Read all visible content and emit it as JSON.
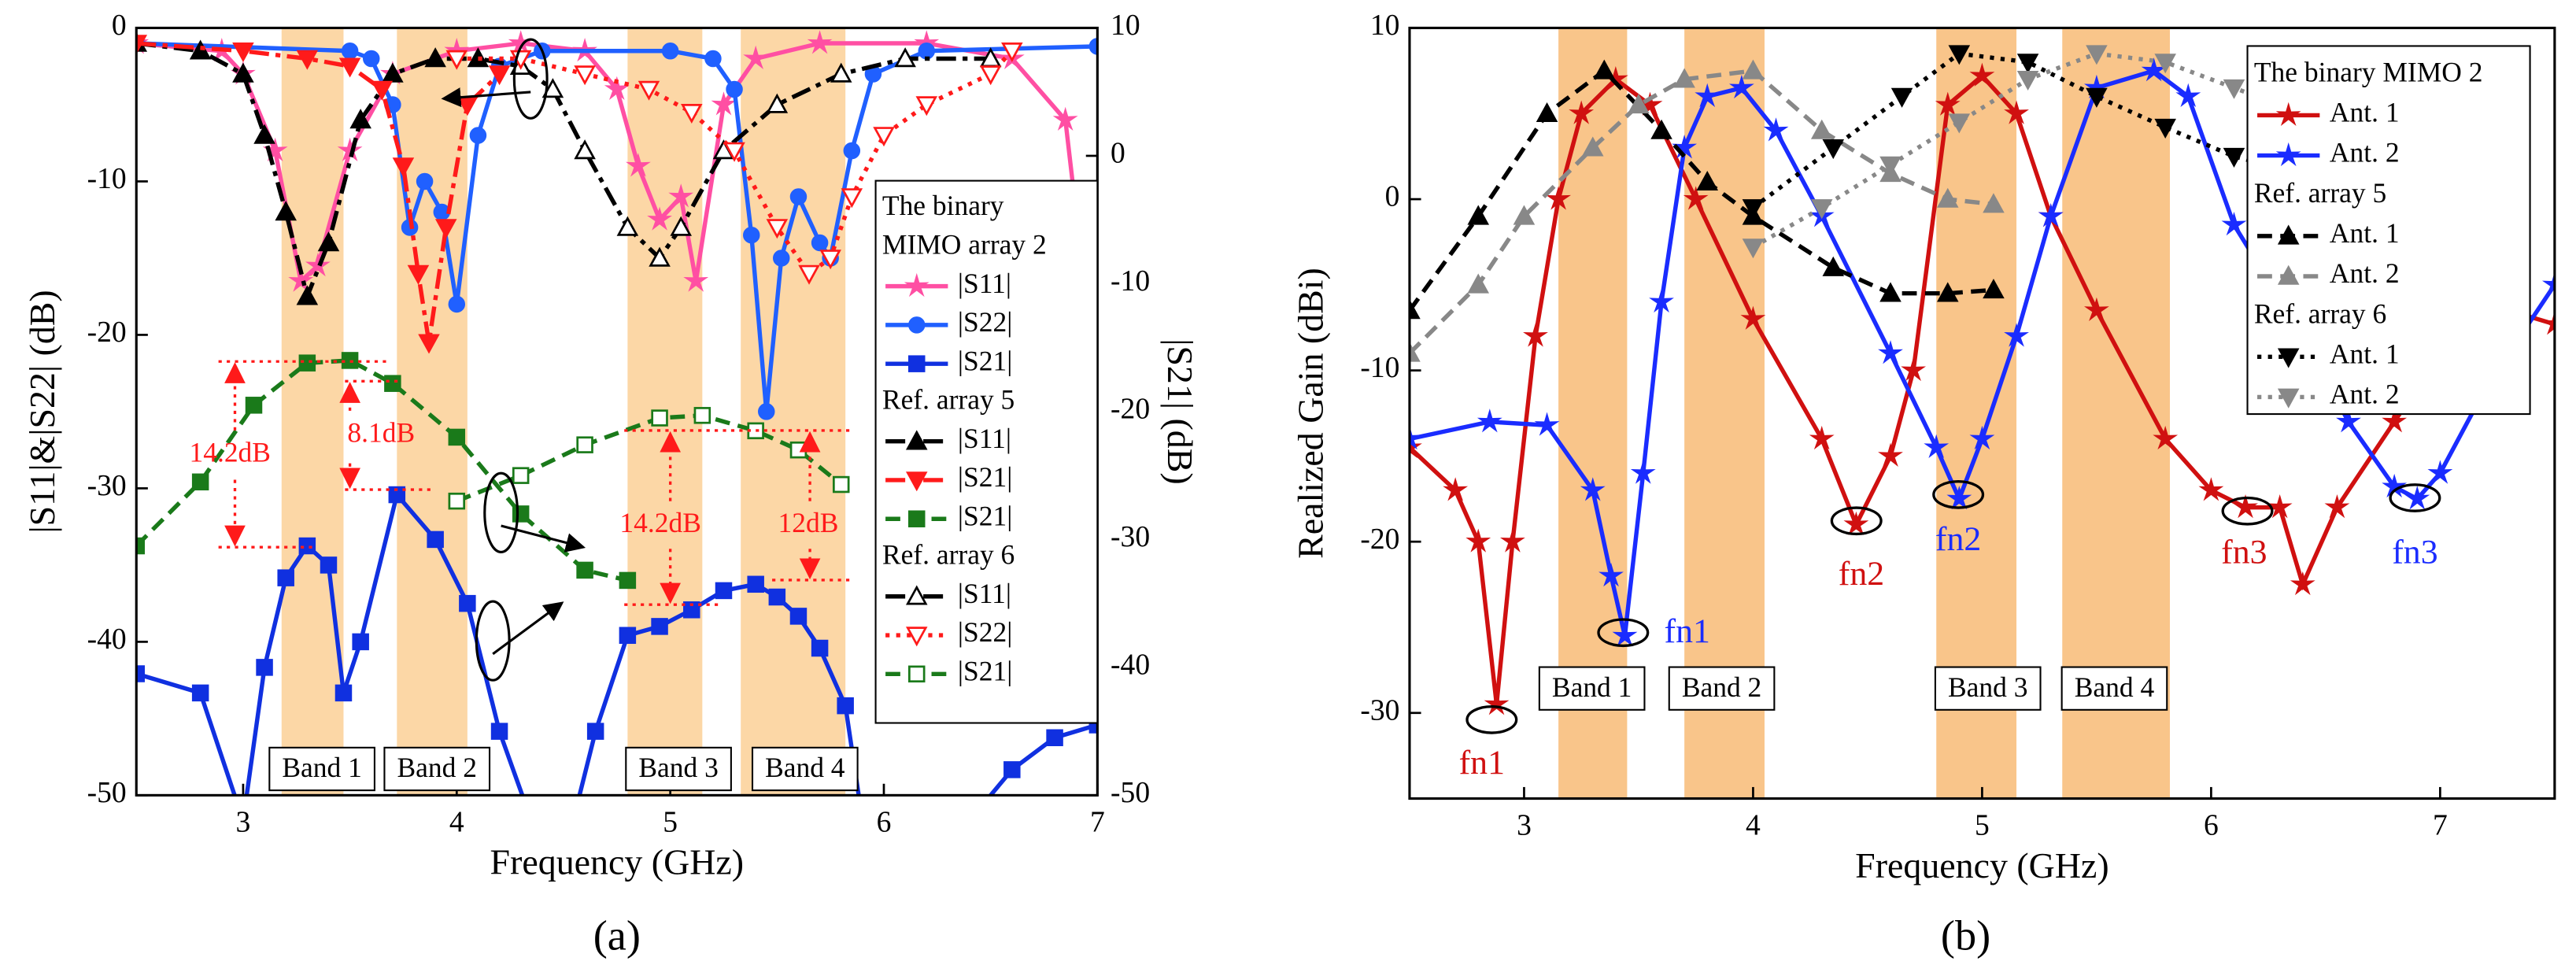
{
  "chart_data": [
    {
      "type": "line",
      "caption": "(a)",
      "x_label": "Frequency (GHz)",
      "y_label": "|S11|&|S22| (dB)",
      "y2_label": "|S21| (dB)",
      "xlim": [
        2.5,
        7
      ],
      "xticks": [
        3,
        4,
        5,
        6,
        7
      ],
      "ylim": [
        -50,
        0
      ],
      "yticks": [
        0,
        -10,
        -20,
        -30,
        -40,
        -50
      ],
      "y2lim": [
        -50,
        10
      ],
      "y2ticks": [
        10,
        0,
        -10,
        -20,
        -30,
        -40,
        -50
      ],
      "bands": [
        {
          "label": "Band 1",
          "range": [
            3.18,
            3.47
          ]
        },
        {
          "label": "Band 2",
          "range": [
            3.72,
            4.05
          ]
        },
        {
          "label": "Band 3",
          "range": [
            4.8,
            5.15
          ]
        },
        {
          "label": "Band 4",
          "range": [
            5.33,
            5.82
          ]
        }
      ],
      "annotations": [
        {
          "text": "14.2dB",
          "color": "#ff1a1a"
        },
        {
          "text": "8.1dB",
          "color": "#ff1a1a"
        },
        {
          "text": "14.2dB",
          "color": "#ff1a1a"
        },
        {
          "text": "12dB",
          "color": "#ff1a1a"
        }
      ],
      "groups": [
        {
          "name": [
            "The binary",
            "MIMO array 2"
          ],
          "series": [
            {
              "name": "|S11|",
              "color": "#ff4fa3",
              "marker": "star",
              "filled": true,
              "dash": "solid",
              "x": [
                2.5,
                2.9,
                3.0,
                3.15,
                3.27,
                3.35,
                3.5,
                3.7,
                4.0,
                4.3,
                4.6,
                4.75,
                4.85,
                4.95,
                5.05,
                5.12,
                5.25,
                5.4,
                5.7,
                6.2,
                6.6,
                6.85,
                7.0
              ],
              "values": [
                -1,
                -1.5,
                -3,
                -8,
                -16.5,
                -15.5,
                -8,
                -3,
                -1.5,
                -1,
                -1.5,
                -4,
                -9,
                -12.5,
                -11,
                -16.5,
                -5,
                -2,
                -1,
                -1,
                -2,
                -6,
                -24
              ]
            },
            {
              "name": "|S22|",
              "color": "#2060ff",
              "marker": "circle",
              "filled": true,
              "dash": "solid",
              "x": [
                2.5,
                3.5,
                3.6,
                3.7,
                3.78,
                3.85,
                3.93,
                4.0,
                4.1,
                4.2,
                4.4,
                5.0,
                5.2,
                5.3,
                5.38,
                5.45,
                5.52,
                5.6,
                5.7,
                5.75,
                5.85,
                5.95,
                6.2,
                7.0
              ],
              "values": [
                -1,
                -1.5,
                -2,
                -5,
                -13,
                -10,
                -12,
                -18,
                -7,
                -2.5,
                -1.5,
                -1.5,
                -2,
                -4,
                -13.5,
                -25,
                -15,
                -11,
                -14,
                -15,
                -8,
                -3,
                -1.5,
                -1.2
              ]
            },
            {
              "name": "|S21|",
              "color": "#1030e0",
              "marker": "square",
              "filled": true,
              "dash": "solid",
              "axis": "y2",
              "x": [
                2.5,
                2.8,
                3.0,
                3.1,
                3.2,
                3.3,
                3.4,
                3.47,
                3.55,
                3.72,
                3.9,
                4.05,
                4.2,
                4.35,
                4.5,
                4.65,
                4.8,
                4.95,
                5.1,
                5.25,
                5.4,
                5.5,
                5.6,
                5.7,
                5.82,
                5.9,
                6.0,
                6.2,
                6.4,
                6.6,
                6.8,
                7.0
              ],
              "values": [
                -40.5,
                -42,
                -52,
                -40,
                -33,
                -30.5,
                -32,
                -42,
                -38,
                -26.5,
                -30,
                -35,
                -45,
                -52,
                -55,
                -45,
                -37.5,
                -36.8,
                -35.5,
                -34,
                -33.5,
                -34.5,
                -36,
                -38.5,
                -43,
                -52,
                -58,
                -56,
                -52,
                -48,
                -45.5,
                -44.5
              ]
            }
          ]
        },
        {
          "name": "Ref. array 5",
          "series": [
            {
              "name": "|S11|",
              "color": "#000000",
              "marker": "triangle-up",
              "filled": true,
              "dash": "dashdot",
              "x": [
                2.5,
                2.8,
                3.0,
                3.1,
                3.2,
                3.3,
                3.4,
                3.55,
                3.7,
                3.9,
                4.1,
                4.3
              ],
              "values": [
                -1,
                -1.5,
                -3,
                -7,
                -12,
                -17.5,
                -14,
                -6,
                -3,
                -2,
                -2,
                -2.5
              ]
            },
            {
              "name": "|S21|",
              "color": "#ff1a1a",
              "marker": "triangle-down",
              "filled": true,
              "dash": "dashdot",
              "x": [
                2.5,
                3.0,
                3.3,
                3.5,
                3.65,
                3.75,
                3.82,
                3.87,
                3.95,
                4.05,
                4.2
              ],
              "values": [
                -1,
                -1.5,
                -2,
                -2.5,
                -4,
                -9,
                -16,
                -20.5,
                -13,
                -5,
                -3
              ]
            },
            {
              "name": "|S21|",
              "color": "#1a7a1a",
              "marker": "square",
              "filled": true,
              "dash": "dash",
              "axis": "y2",
              "x": [
                2.5,
                2.8,
                3.05,
                3.3,
                3.5,
                3.7,
                4.0,
                4.3,
                4.6,
                4.8
              ],
              "values": [
                -30.5,
                -25.5,
                -19.5,
                -16.2,
                -16,
                -17.8,
                -22,
                -28,
                -32.4,
                -33.2
              ]
            }
          ]
        },
        {
          "name": "Ref. array 6",
          "series": [
            {
              "name": "|S11|",
              "color": "#000000",
              "marker": "triangle-up",
              "filled": false,
              "dash": "dashdot",
              "x": [
                4.3,
                4.45,
                4.6,
                4.8,
                4.95,
                5.05,
                5.25,
                5.5,
                5.8,
                6.1,
                6.5
              ],
              "values": [
                -2.5,
                -4,
                -8,
                -13,
                -15,
                -13,
                -8,
                -5,
                -3,
                -2,
                -2
              ]
            },
            {
              "name": "|S22|",
              "color": "#ff1a1a",
              "marker": "triangle-down",
              "filled": false,
              "dash": "dot",
              "x": [
                4.0,
                4.3,
                4.6,
                4.9,
                5.1,
                5.3,
                5.5,
                5.65,
                5.75,
                5.85,
                6.0,
                6.2,
                6.5,
                6.6
              ],
              "values": [
                -2,
                -2,
                -3,
                -4,
                -5.5,
                -8,
                -13,
                -16,
                -15,
                -11,
                -7,
                -5,
                -3,
                -1.5
              ]
            },
            {
              "name": "|S21|",
              "color": "#1a7a1a",
              "marker": "square",
              "filled": false,
              "dash": "dash",
              "axis": "y2",
              "x": [
                4.0,
                4.3,
                4.6,
                4.95,
                5.15,
                5.4,
                5.6,
                5.8
              ],
              "values": [
                -27,
                -25,
                -22.6,
                -20.5,
                -20.3,
                -21.5,
                -23,
                -25.7
              ]
            }
          ]
        }
      ]
    },
    {
      "type": "line",
      "caption": "(b)",
      "x_label": "Frequency (GHz)",
      "y_label": "Realized Gain (dBi)",
      "xlim": [
        2.5,
        7.5
      ],
      "xticks": [
        3,
        4,
        5,
        6,
        7
      ],
      "ylim": [
        -35,
        10
      ],
      "yticks": [
        -30,
        -20,
        -10,
        0,
        10
      ],
      "bands": [
        {
          "label": "Band 1",
          "range": [
            3.15,
            3.45
          ]
        },
        {
          "label": "Band 2",
          "range": [
            3.7,
            4.05
          ]
        },
        {
          "label": "Band 3",
          "range": [
            4.8,
            5.15
          ]
        },
        {
          "label": "Band 4",
          "range": [
            5.35,
            5.82
          ]
        }
      ],
      "annotations": [
        {
          "text": "fn1",
          "color": "#d01010"
        },
        {
          "text": "fn1",
          "color": "#1a2cff"
        },
        {
          "text": "fn2",
          "color": "#d01010"
        },
        {
          "text": "fn2",
          "color": "#1a2cff"
        },
        {
          "text": "fn3",
          "color": "#d01010"
        },
        {
          "text": "fn3",
          "color": "#1a2cff"
        }
      ],
      "groups": [
        {
          "name": "The binary MIMO 2",
          "series": [
            {
              "name": "Ant. 1",
              "color": "#d01010",
              "marker": "star",
              "filled": true,
              "dash": "solid",
              "x": [
                2.5,
                2.7,
                2.8,
                2.88,
                2.95,
                3.05,
                3.15,
                3.25,
                3.4,
                3.55,
                3.75,
                4.0,
                4.3,
                4.45,
                4.6,
                4.7,
                4.85,
                5.0,
                5.15,
                5.3,
                5.5,
                5.8,
                6.0,
                6.15,
                6.3,
                6.4,
                6.55,
                6.8,
                7.0,
                7.3,
                7.5
              ],
              "values": [
                -14.5,
                -17,
                -20,
                -29.5,
                -20,
                -8,
                0,
                5,
                7,
                5.5,
                0,
                -7,
                -14,
                -19,
                -15,
                -10,
                5.5,
                7.2,
                5,
                -1,
                -6.5,
                -14,
                -17,
                -18,
                -18,
                -22.5,
                -18,
                -13,
                -9,
                -6.5,
                -7.3
              ]
            },
            {
              "name": "Ant. 2",
              "color": "#1a2cff",
              "marker": "star",
              "filled": true,
              "dash": "solid",
              "x": [
                2.5,
                2.85,
                3.1,
                3.3,
                3.38,
                3.44,
                3.52,
                3.6,
                3.7,
                3.8,
                3.95,
                4.1,
                4.3,
                4.6,
                4.8,
                4.9,
                5.0,
                5.15,
                5.3,
                5.5,
                5.75,
                5.9,
                6.1,
                6.4,
                6.6,
                6.8,
                6.9,
                7.0,
                7.2,
                7.5
              ],
              "values": [
                -14,
                -13,
                -13.2,
                -17,
                -22,
                -25.5,
                -16,
                -6,
                3,
                6,
                6.5,
                4,
                -1,
                -9,
                -14.5,
                -17.5,
                -14,
                -8,
                -1,
                6.5,
                7.5,
                6,
                -1.5,
                -8,
                -13,
                -16.8,
                -17.5,
                -16,
                -11,
                -5
              ]
            }
          ]
        },
        {
          "name": "Ref. array 5",
          "series": [
            {
              "name": "Ant. 1",
              "color": "#000000",
              "marker": "triangle-up",
              "filled": true,
              "dash": "dash",
              "x": [
                2.5,
                2.8,
                3.1,
                3.35,
                3.6,
                3.8,
                4.0,
                4.35,
                4.6,
                4.85,
                5.05
              ],
              "values": [
                -6.5,
                -1,
                5,
                7.5,
                4,
                1,
                -1,
                -4,
                -5.5,
                -5.5,
                -5.3
              ]
            },
            {
              "name": "Ant. 2",
              "color": "#888888",
              "marker": "triangle-up",
              "filled": true,
              "dash": "dash",
              "x": [
                2.5,
                2.8,
                3.0,
                3.3,
                3.5,
                3.7,
                4.0,
                4.3,
                4.6,
                4.85,
                5.05
              ],
              "values": [
                -9,
                -5,
                -1,
                3,
                5.5,
                7,
                7.5,
                4,
                1.5,
                0,
                -0.3
              ]
            }
          ]
        },
        {
          "name": "Ref. array 6",
          "series": [
            {
              "name": "Ant. 1",
              "color": "#000000",
              "marker": "triangle-down",
              "filled": true,
              "dash": "dot",
              "x": [
                4.0,
                4.35,
                4.65,
                4.9,
                5.2,
                5.5,
                5.8,
                6.1,
                6.3
              ],
              "values": [
                -0.5,
                3,
                6,
                8.5,
                8,
                6,
                4.2,
                2.5,
                1.8
              ]
            },
            {
              "name": "Ant. 2",
              "color": "#888888",
              "marker": "triangle-down",
              "filled": true,
              "dash": "dot",
              "x": [
                4.0,
                4.3,
                4.6,
                4.9,
                5.2,
                5.5,
                5.8,
                6.1,
                6.3
              ],
              "values": [
                -2.8,
                -0.5,
                2,
                4.5,
                7,
                8.5,
                8,
                6.5,
                5.5
              ]
            }
          ]
        }
      ]
    }
  ]
}
